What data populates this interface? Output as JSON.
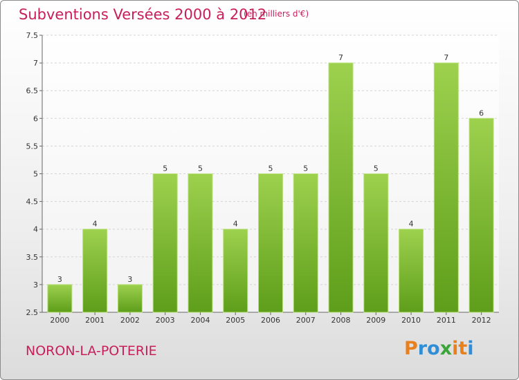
{
  "title": "Subventions Versées 2000 à 2012",
  "subtitle": "(en milliers d'€)",
  "location": "NORON-LA-POTERIE",
  "logo": {
    "letters": [
      "P",
      "r",
      "o",
      "x",
      "i",
      "t",
      "i"
    ],
    "colors": [
      "#e8801e",
      "#2f8ed6",
      "#2f8ed6",
      "#3aa63a",
      "#e8801e",
      "#e8801e",
      "#2f8ed6"
    ]
  },
  "chart_data": {
    "type": "bar",
    "categories": [
      "2000",
      "2001",
      "2002",
      "2003",
      "2004",
      "2005",
      "2006",
      "2007",
      "2008",
      "2009",
      "2010",
      "2011",
      "2012"
    ],
    "values": [
      3,
      4,
      3,
      5,
      5,
      4,
      5,
      5,
      7,
      5,
      4,
      7,
      6
    ],
    "ylim": [
      2.5,
      7.5
    ],
    "yticks": [
      "2.5",
      "3",
      "3.5",
      "4",
      "4.5",
      "5",
      "5.5",
      "6",
      "6.5",
      "7",
      "7.5"
    ],
    "grid": true,
    "bar_color": "#7fc33a"
  }
}
